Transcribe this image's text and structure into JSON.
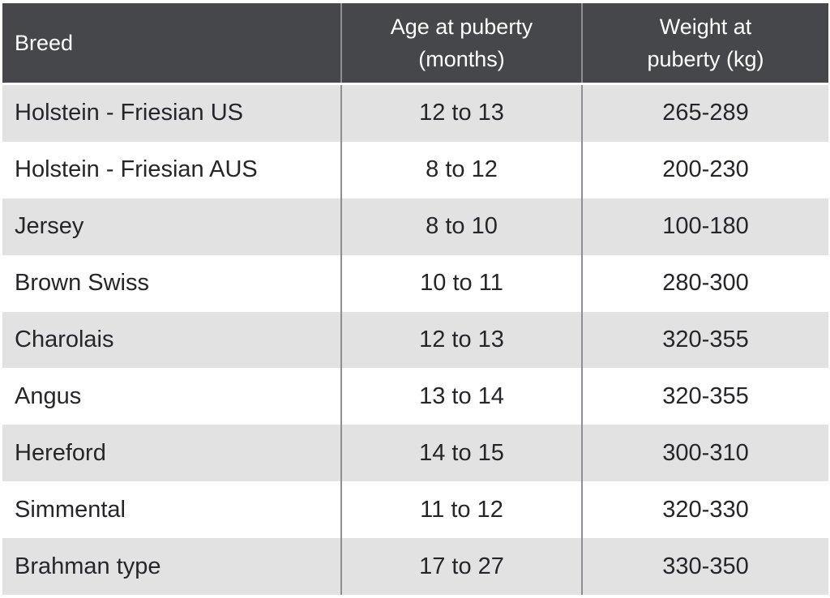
{
  "chart_data": {
    "type": "table",
    "title": "",
    "columns": [
      "Breed",
      "Age at puberty (months)",
      "Weight at puberty (kg)"
    ],
    "rows": [
      [
        "Holstein - Friesian US",
        "12 to 13",
        "265-289"
      ],
      [
        "Holstein - Friesian AUS",
        "8 to 12",
        "200-230"
      ],
      [
        "Jersey",
        "8 to 10",
        "100-180"
      ],
      [
        "Brown Swiss",
        "10 to 11",
        "280-300"
      ],
      [
        "Charolais",
        "12 to 13",
        "320-355"
      ],
      [
        "Angus",
        "13 to 14",
        "320-355"
      ],
      [
        "Hereford",
        "14 to 15",
        "300-310"
      ],
      [
        "Simmental",
        "11 to 12",
        "320-330"
      ],
      [
        "Brahman type",
        "17 to 27",
        "330-350"
      ]
    ],
    "layout_hints": {
      "alternating_row_shading": true,
      "shaded_rows": "odd (1st, 3rd, 5th, 7th, 9th)",
      "column_alignment": [
        "left",
        "center",
        "center"
      ]
    }
  },
  "header_display": {
    "breed": "Breed",
    "age": [
      "Age at puberty",
      "(months)"
    ],
    "weight": [
      "Weight at",
      "puberty (kg)"
    ]
  },
  "colors": {
    "header_bg": "#46474b",
    "header_text": "#ffffff",
    "row_alt_bg": "#e2e2e3",
    "row_bg": "#ffffff",
    "divider": "#8e8f92",
    "body_text": "#26262a",
    "page_bg": "#ffffff"
  }
}
